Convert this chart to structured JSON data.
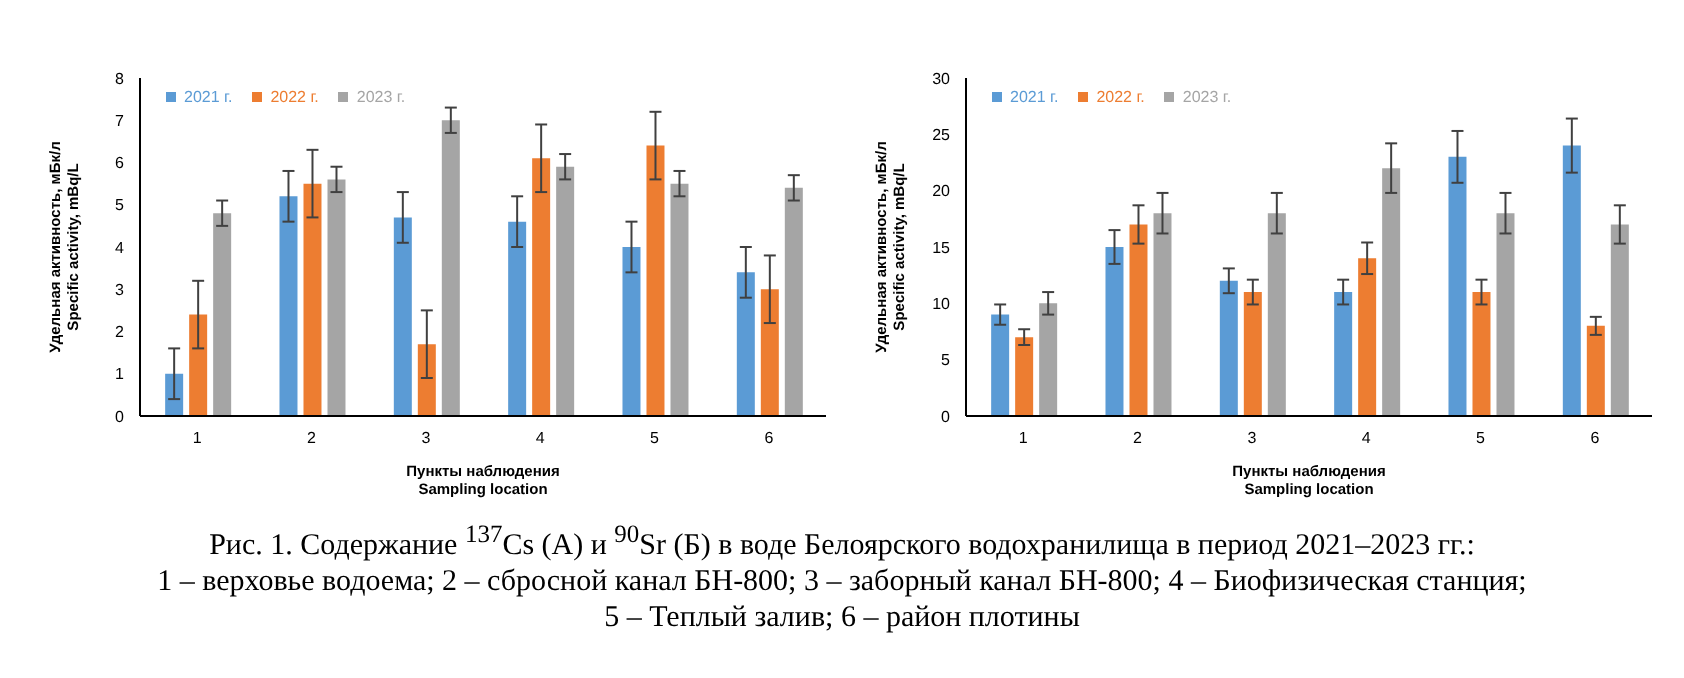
{
  "chart_data": [
    {
      "type": "bar",
      "xlabel": "Пункты наблюдения\nSampling location",
      "ylabel": "Удельная активность, мБк/л\nSpecific activity, mBq/L",
      "categories": [
        "1",
        "2",
        "3",
        "4",
        "5",
        "6"
      ],
      "ylim": [
        0,
        8
      ],
      "yticks": [
        0,
        1,
        2,
        3,
        4,
        5,
        6,
        7,
        8
      ],
      "grid": false,
      "legend": "top left",
      "series": [
        {
          "name": "2021 г.",
          "color": "#5b9bd5",
          "values": [
            1.0,
            5.2,
            4.7,
            4.6,
            4.0,
            3.4
          ],
          "errors": [
            0.6,
            0.6,
            0.6,
            0.6,
            0.6,
            0.6
          ]
        },
        {
          "name": "2022 г.",
          "color": "#ed7d31",
          "values": [
            2.4,
            5.5,
            1.7,
            6.1,
            6.4,
            3.0
          ],
          "errors": [
            0.8,
            0.8,
            0.8,
            0.8,
            0.8,
            0.8
          ]
        },
        {
          "name": "2023 г.",
          "color": "#a5a5a5",
          "values": [
            4.8,
            5.6,
            7.0,
            5.9,
            5.5,
            5.4
          ],
          "errors": [
            0.3,
            0.3,
            0.3,
            0.3,
            0.3,
            0.3
          ]
        }
      ],
      "annotations": [
        "Рис. 1. Содержание $^{137}$Cs (А) и $^{90}$Sr (Б) в воде Белоярского водохранилища в период 2021–2023 гг.:\n1 – верховье водоема; 2 – сбросной канал БН-800; 3 – заборный канал БН-800; 4 – Биофизическая станция;\n5 – Теплый залив; 6 – район плотины"
      ]
    },
    {
      "type": "bar",
      "xlabel": "Пункты наблюдения\nSampling location",
      "ylabel": "Удельная активность, мБк/л\nSpecific activity, mBq/L",
      "categories": [
        "1",
        "2",
        "3",
        "4",
        "5",
        "6"
      ],
      "ylim": [
        0,
        30
      ],
      "yticks": [
        0,
        5,
        10,
        15,
        20,
        25,
        30
      ],
      "grid": false,
      "legend": "top left",
      "series": [
        {
          "name": "2021 г.",
          "color": "#5b9bd5",
          "values": [
            9,
            15,
            12,
            11,
            23,
            24
          ],
          "errors": [
            0.9,
            1.5,
            1.1,
            1.1,
            2.3,
            2.4
          ]
        },
        {
          "name": "2022 г.",
          "color": "#ed7d31",
          "values": [
            7,
            17,
            11,
            14,
            11,
            8
          ],
          "errors": [
            0.7,
            1.7,
            1.1,
            1.4,
            1.1,
            0.8
          ]
        },
        {
          "name": "2023 г.",
          "color": "#a5a5a5",
          "values": [
            10,
            18,
            18,
            22,
            18,
            17
          ],
          "errors": [
            1.0,
            1.8,
            1.8,
            2.2,
            1.8,
            1.7
          ]
        }
      ]
    }
  ]
}
